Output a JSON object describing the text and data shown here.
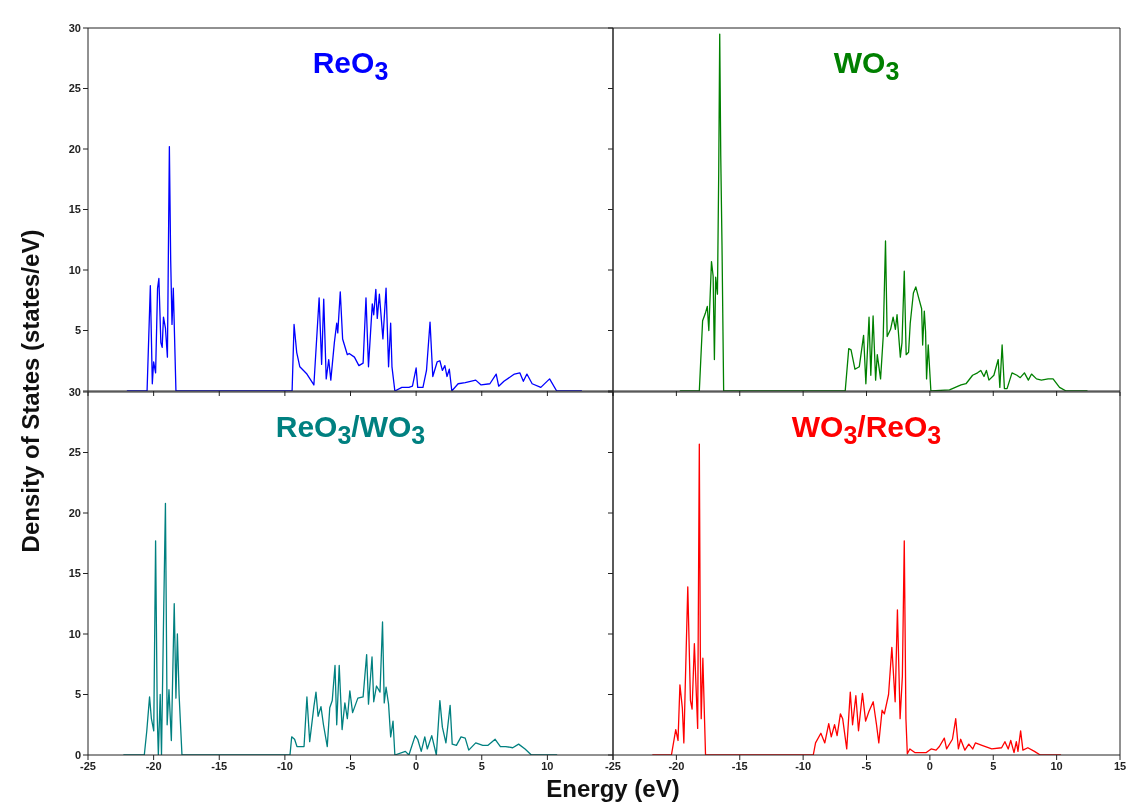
{
  "chart_data": [
    {
      "type": "line",
      "title": "ReO$_{3}$",
      "ylabel": "Density of States (states/eV)",
      "xlim": [
        -25,
        15
      ],
      "xticks": [
        -25,
        -20,
        -15,
        -10,
        -5,
        0,
        5,
        10,
        15
      ],
      "ylim": [
        0,
        30
      ],
      "yticks": [
        {
          "value": 0,
          "label": null
        },
        5,
        10,
        15,
        20,
        25,
        30
      ],
      "tick_labels": "y",
      "series": [
        {
          "color": "#0000ff",
          "x": [
            -22,
            -20.5,
            -20.25,
            -20.1,
            -20.0,
            -19.85,
            -19.7,
            -19.6,
            -19.45,
            -19.35,
            -19.25,
            -19.1,
            -18.95,
            -18.8,
            -18.7,
            -18.6,
            -18.5,
            -18.3,
            -9.45,
            -9.3,
            -9.1,
            -8.86,
            -8.32,
            -7.79,
            -7.39,
            -7.2,
            -7.04,
            -6.85,
            -6.66,
            -6.5,
            -6.23,
            -6.05,
            -5.97,
            -5.78,
            -5.6,
            -5.24,
            -5.1,
            -4.7,
            -4.36,
            -4.04,
            -3.82,
            -3.63,
            -3.34,
            -3.23,
            -3.07,
            -2.96,
            -2.8,
            -2.53,
            -2.29,
            -2.1,
            -1.94,
            -1.84,
            -1.62,
            -1.09,
            -0.55,
            -0.28,
            0,
            0.12,
            0.52,
            0.79,
            1.06,
            1.27,
            1.6,
            1.81,
            2.0,
            2.19,
            2.35,
            2.53,
            2.72,
            3.2,
            3.74,
            4.54,
            4.95,
            5.62,
            6.1,
            6.29,
            6.69,
            7.49,
            7.9,
            8.17,
            8.44,
            8.84,
            9.5,
            10.17,
            10.71,
            12.6
          ],
          "values": [
            0,
            0,
            8.7,
            0.6,
            2.4,
            1.5,
            8.5,
            9.3,
            4,
            3.6,
            6.1,
            5.2,
            2.8,
            20.2,
            10.8,
            5.5,
            8.5,
            0,
            0,
            5.5,
            3.2,
            2.0,
            1.4,
            0.5,
            7.7,
            2.2,
            7.6,
            1.0,
            2.6,
            0.9,
            4.0,
            5.6,
            4.8,
            8.2,
            4.3,
            3.0,
            3.1,
            2.8,
            2.1,
            2.3,
            7.7,
            2.0,
            7.2,
            6.3,
            8.4,
            6.0,
            8.0,
            4.3,
            8.5,
            2.0,
            5.6,
            2.0,
            0,
            0.3,
            0.3,
            0.4,
            1.9,
            0.3,
            0.3,
            1.7,
            5.7,
            1.2,
            2.4,
            2.5,
            1.7,
            2.1,
            1.2,
            1.8,
            0,
            0.6,
            0.7,
            0.9,
            0.5,
            0.6,
            1.4,
            0.4,
            0.8,
            1.4,
            1.5,
            0.8,
            1.4,
            0.6,
            0.3,
            1.0,
            0,
            0
          ]
        }
      ]
    },
    {
      "type": "line",
      "title": "WO$_{3}$",
      "xlim": [
        -25,
        15
      ],
      "xticks": [
        -25,
        -20,
        -15,
        -10,
        -5,
        0,
        5,
        10,
        15
      ],
      "ylim": [
        0,
        30
      ],
      "yticks": [
        0,
        5,
        10,
        15,
        20,
        25,
        30
      ],
      "tick_labels": false,
      "series": [
        {
          "color": "#008000",
          "x": [
            -19.69,
            -18.19,
            -17.93,
            -17.72,
            -17.56,
            -17.44,
            -17.23,
            -17.1,
            -17.0,
            -16.9,
            -16.76,
            -16.66,
            -16.58,
            -16.5,
            -16.4,
            -16.27,
            -6.68,
            -6.4,
            -6.22,
            -5.91,
            -5.57,
            -5.23,
            -5.05,
            -4.8,
            -4.66,
            -4.48,
            -4.28,
            -4.15,
            -3.89,
            -3.68,
            -3.5,
            -3.37,
            -3.1,
            -2.9,
            -2.72,
            -2.59,
            -2.33,
            -2.2,
            -2.02,
            -1.87,
            -1.68,
            -1.55,
            -1.3,
            -1.11,
            -0.91,
            -0.65,
            -0.57,
            -0.44,
            -0.34,
            -0.26,
            -0.13,
            0.08,
            1.55,
            2.46,
            2.85,
            3.37,
            3.76,
            4.02,
            4.27,
            4.46,
            4.66,
            5.05,
            5.39,
            5.52,
            5.7,
            5.88,
            6.09,
            6.48,
            6.87,
            7.13,
            7.46,
            7.77,
            8.02,
            8.41,
            8.8,
            9.33,
            9.72,
            10.23,
            10.75,
            12.4
          ],
          "values": [
            0,
            0,
            5.8,
            6.4,
            7.0,
            5.0,
            10.7,
            9.5,
            2.6,
            9.4,
            8.0,
            18.0,
            29.5,
            19.5,
            12,
            0,
            0,
            3.5,
            3.4,
            1.8,
            2.0,
            4.6,
            0.6,
            6.1,
            1.3,
            6.2,
            0.9,
            3.0,
            1.0,
            4.5,
            12.4,
            4.5,
            5.1,
            6.1,
            5.1,
            6.3,
            2.8,
            4.0,
            9.9,
            3.0,
            3.2,
            5.6,
            8.1,
            8.6,
            7.8,
            6.8,
            3.8,
            6.6,
            4.9,
            1.0,
            3.8,
            0,
            0.1,
            0.5,
            0.6,
            1.3,
            1.5,
            1.7,
            1.2,
            1.7,
            0.9,
            1.3,
            2.6,
            0.3,
            3.8,
            0.2,
            0.2,
            1.5,
            1.3,
            1.1,
            1.5,
            0.9,
            1.4,
            1.0,
            0.9,
            1.0,
            1.0,
            0.3,
            0,
            0
          ]
        }
      ]
    },
    {
      "type": "line",
      "title": "ReO$_{3}$/WO$_{3}$",
      "xlabel": "Energy (eV)",
      "xlim": [
        -25,
        15
      ],
      "xticks": [
        -25,
        -20,
        -15,
        -10,
        -5,
        0,
        5,
        10,
        {
          "value": 15,
          "label": null
        }
      ],
      "ylim": [
        0,
        30
      ],
      "yticks": [
        0,
        5,
        10,
        15,
        20,
        25,
        30
      ],
      "series": [
        {
          "color": "#008080",
          "x": [
            -22.27,
            -20.71,
            -20.52,
            -20.31,
            -20.17,
            -19.99,
            -19.85,
            -19.72,
            -19.64,
            -19.5,
            -19.4,
            -19.26,
            -19.1,
            -18.97,
            -18.83,
            -18.65,
            -18.43,
            -18.3,
            -18.19,
            -18.06,
            -17.84,
            -9.61,
            -9.48,
            -9.26,
            -9.08,
            -8.54,
            -8.32,
            -8.11,
            -7.79,
            -7.63,
            -7.47,
            -7.25,
            -7.06,
            -6.77,
            -6.58,
            -6.39,
            -6.18,
            -6.05,
            -5.86,
            -5.64,
            -5.43,
            -5.24,
            -5.05,
            -4.84,
            -4.44,
            -4.04,
            -3.77,
            -3.63,
            -3.36,
            -3.23,
            -3.02,
            -2.75,
            -2.56,
            -2.43,
            -2.29,
            -2.1,
            -1.94,
            -1.76,
            -1.62,
            -0.82,
            -0.55,
            -0.07,
            0.12,
            0.39,
            0.66,
            0.85,
            1.19,
            1.54,
            1.81,
            2.0,
            2.27,
            2.59,
            2.75,
            3.07,
            3.42,
            3.74,
            4.01,
            4.54,
            5.08,
            5.48,
            6.02,
            6.42,
            6.82,
            7.36,
            7.81,
            8.3,
            8.78,
            10.71
          ],
          "values": [
            0,
            0,
            2.0,
            4.8,
            3.0,
            2.0,
            17.7,
            3.0,
            0,
            5.0,
            0,
            10.0,
            20.8,
            2.5,
            5.4,
            1.2,
            12.5,
            4.7,
            10.0,
            5.0,
            0,
            0,
            1.5,
            1.3,
            0.7,
            0.7,
            4.8,
            1.1,
            4.0,
            5.2,
            3.2,
            4.0,
            2.5,
            0.7,
            3.9,
            4.5,
            7.4,
            2.5,
            7.4,
            2.1,
            4.3,
            3.0,
            5.3,
            3.5,
            4.7,
            4.8,
            8.3,
            4.2,
            8.1,
            4.4,
            5.7,
            5.2,
            11.0,
            4.3,
            5.6,
            4.2,
            1.5,
            2.8,
            0,
            0.3,
            0,
            1.6,
            1.3,
            0.3,
            1.5,
            0.5,
            1.6,
            0,
            4.5,
            2.3,
            1.0,
            4.1,
            0.9,
            0.8,
            1.5,
            1.4,
            0.4,
            1.0,
            0.8,
            0.8,
            1.3,
            0.7,
            0.7,
            0.6,
            0.9,
            0.5,
            0,
            0
          ]
        }
      ]
    },
    {
      "type": "line",
      "title": "WO$_{3}$/ReO$_{3}$",
      "xlim": [
        -25,
        15
      ],
      "xticks": [
        -25,
        -20,
        -15,
        -10,
        -5,
        0,
        5,
        10,
        15
      ],
      "ylim": [
        0,
        30
      ],
      "yticks": [
        0,
        5,
        10,
        15,
        20,
        25,
        30
      ],
      "tick_labels": "x",
      "series": [
        {
          "color": "#ff0000",
          "x": [
            -21.86,
            -20.39,
            -20.05,
            -19.87,
            -19.72,
            -19.53,
            -19.41,
            -19.28,
            -19.1,
            -18.89,
            -18.76,
            -18.58,
            -18.32,
            -18.19,
            -18.11,
            -18.04,
            -17.91,
            -17.78,
            -17.7,
            -9.2,
            -9.02,
            -8.6,
            -8.29,
            -7.98,
            -7.78,
            -7.52,
            -7.32,
            -7.06,
            -6.88,
            -6.56,
            -6.28,
            -6.1,
            -5.84,
            -5.63,
            -5.32,
            -5.07,
            -4.81,
            -4.47,
            -4.21,
            -4.03,
            -3.77,
            -3.59,
            -3.26,
            -3.0,
            -2.74,
            -2.56,
            -2.35,
            -2.17,
            -2.02,
            -1.89,
            -1.78,
            -1.58,
            -1.19,
            -0.28,
            0.1,
            0.49,
            0.75,
            1.14,
            1.32,
            1.78,
            2.04,
            2.25,
            2.43,
            2.76,
            3.07,
            3.38,
            3.59,
            4.11,
            4.88,
            5.66,
            5.92,
            6.18,
            6.38,
            6.64,
            6.82,
            6.95,
            7.16,
            7.34,
            7.73,
            8.25,
            8.71,
            10.31
          ],
          "values": [
            0,
            0,
            2.1,
            1.2,
            5.8,
            3.9,
            1.0,
            6.5,
            13.9,
            4.5,
            3.8,
            9.2,
            2.2,
            25.7,
            8.5,
            3.0,
            8.0,
            3.0,
            0,
            0,
            1.0,
            1.8,
            1.0,
            2.6,
            1.5,
            2.5,
            1.6,
            3.4,
            3.0,
            0.5,
            5.2,
            2.5,
            4.9,
            2.0,
            5.1,
            2.8,
            3.6,
            4.4,
            2.5,
            1.0,
            3.7,
            3.4,
            5.0,
            8.9,
            4.4,
            12.0,
            3.0,
            6.5,
            17.7,
            3.0,
            0.1,
            0.5,
            0.2,
            0.2,
            0.5,
            0.4,
            0.7,
            1.4,
            0.5,
            1.3,
            3.0,
            0.5,
            1.3,
            0.4,
            0.9,
            0.5,
            1.0,
            0.8,
            0.5,
            0.6,
            1.1,
            0.5,
            1.2,
            0.2,
            1.1,
            0.3,
            2.0,
            0.4,
            0.6,
            0.3,
            0,
            0
          ]
        }
      ]
    }
  ]
}
